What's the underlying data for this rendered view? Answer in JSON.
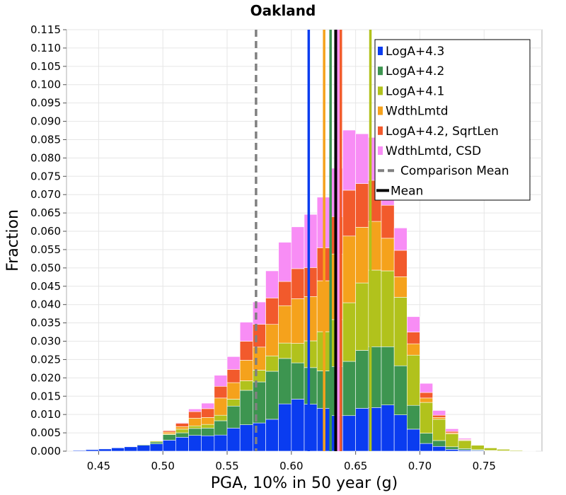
{
  "chart_data": {
    "type": "bar",
    "title": "Oakland",
    "xlabel": "PGA, 10% in 50 year (g)",
    "ylabel": "Fraction",
    "xlim": [
      0.425,
      0.795
    ],
    "ylim": [
      0,
      0.115
    ],
    "x_ticks": [
      0.45,
      0.5,
      0.55,
      0.6,
      0.65,
      0.7,
      0.75
    ],
    "x_tick_labels": [
      "0.45",
      "0.50",
      "0.55",
      "0.60",
      "0.65",
      "0.70",
      "0.75"
    ],
    "y_ticks": [
      0.0,
      0.005,
      0.01,
      0.015,
      0.02,
      0.025,
      0.03,
      0.035,
      0.04,
      0.045,
      0.05,
      0.055,
      0.06,
      0.065,
      0.07,
      0.075,
      0.08,
      0.085,
      0.09,
      0.095,
      0.1,
      0.105,
      0.11,
      0.115
    ],
    "y_tick_labels": [
      "0.000",
      "0.005",
      "0.010",
      "0.015",
      "0.020",
      "0.025",
      "0.030",
      "0.035",
      "0.040",
      "0.045",
      "0.050",
      "0.055",
      "0.060",
      "0.065",
      "0.070",
      "0.075",
      "0.080",
      "0.085",
      "0.090",
      "0.095",
      "0.100",
      "0.105",
      "0.110",
      "0.115"
    ],
    "grid": true,
    "stacked": true,
    "bin_width": 0.01,
    "bin_centers": [
      0.435,
      0.445,
      0.455,
      0.465,
      0.475,
      0.485,
      0.495,
      0.505,
      0.515,
      0.525,
      0.535,
      0.545,
      0.555,
      0.565,
      0.575,
      0.585,
      0.595,
      0.605,
      0.615,
      0.625,
      0.635,
      0.645,
      0.655,
      0.665,
      0.675,
      0.685,
      0.695,
      0.705,
      0.715,
      0.725,
      0.735,
      0.745,
      0.755,
      0.765,
      0.775,
      0.785
    ],
    "series": [
      {
        "name": "LogA+4.3",
        "color": "#0a3cf0",
        "values": [
          0.0002,
          0.0004,
          0.0006,
          0.0009,
          0.0012,
          0.0016,
          0.002,
          0.003,
          0.0038,
          0.0043,
          0.0042,
          0.0044,
          0.0063,
          0.0072,
          0.0077,
          0.0087,
          0.0129,
          0.0142,
          0.0128,
          0.0117,
          0.0097,
          0.0097,
          0.0117,
          0.0119,
          0.0126,
          0.0099,
          0.006,
          0.0021,
          0.0013,
          0.0005,
          0.0003,
          0.0002,
          0.0001,
          0,
          0,
          0
        ]
      },
      {
        "name": "LogA+4.2",
        "color": "#3d9550",
        "values": [
          0,
          0,
          0,
          0,
          0.0001,
          0.0002,
          0.0005,
          0.0015,
          0.0012,
          0.0019,
          0.0021,
          0.0039,
          0.006,
          0.0094,
          0.0112,
          0.0131,
          0.0124,
          0.0099,
          0.01,
          0.0102,
          0.0134,
          0.0148,
          0.0158,
          0.0166,
          0.0159,
          0.0134,
          0.0065,
          0.0028,
          0.0016,
          0.0007,
          0.0004,
          0.0002,
          0.0001,
          0.0001,
          0,
          0
        ]
      },
      {
        "name": "LogA+4.1",
        "color": "#b1c21c",
        "values": [
          0,
          0,
          0,
          0,
          0,
          0.0001,
          0.0003,
          0.0002,
          0.001,
          0.0007,
          0.001,
          0.0015,
          0.0019,
          0.0026,
          0.0032,
          0.0042,
          0.0042,
          0.0053,
          0.0073,
          0.0107,
          0.0128,
          0.016,
          0.0184,
          0.0209,
          0.0207,
          0.0187,
          0.0137,
          0.0084,
          0.0058,
          0.0035,
          0.0022,
          0.0012,
          0.0007,
          0.0004,
          0.0002,
          0.0001
        ]
      },
      {
        "name": "WdthLmtd",
        "color": "#f5a21c",
        "values": [
          0,
          0,
          0,
          0,
          0,
          0,
          0.0001,
          0.0005,
          0.0007,
          0.0021,
          0.0019,
          0.0047,
          0.0045,
          0.0056,
          0.0063,
          0.0086,
          0.0102,
          0.0122,
          0.0121,
          0.0139,
          0.0179,
          0.0182,
          0.0152,
          0.0133,
          0.0089,
          0.0056,
          0.0031,
          0.0012,
          0.0005,
          0.0003,
          0.0001,
          0,
          0,
          0,
          0,
          0
        ]
      },
      {
        "name": "LogA+4.2, SqrtLen",
        "color": "#f25a2c",
        "values": [
          0,
          0,
          0,
          0,
          0,
          0,
          0.0001,
          0.0004,
          0.0009,
          0.0018,
          0.0024,
          0.0032,
          0.0036,
          0.0052,
          0.0062,
          0.0072,
          0.0066,
          0.0082,
          0.0079,
          0.009,
          0.0102,
          0.0125,
          0.0119,
          0.0112,
          0.009,
          0.0072,
          0.0032,
          0.0015,
          0.0006,
          0.0004,
          0.0002,
          0.0001,
          0,
          0,
          0,
          0
        ]
      },
      {
        "name": "WdthLmtd, CSD",
        "color": "#f88df5",
        "values": [
          0,
          0,
          0,
          0,
          0,
          0,
          0.0001,
          0.0001,
          0.0002,
          0.0007,
          0.0015,
          0.003,
          0.0035,
          0.0052,
          0.0061,
          0.0074,
          0.0107,
          0.0114,
          0.0145,
          0.0138,
          0.0132,
          0.0164,
          0.0136,
          0.0117,
          0.0059,
          0.0061,
          0.0042,
          0.0025,
          0.0013,
          0.0007,
          0.0003,
          0.0001,
          0.0001,
          0,
          0,
          0
        ]
      }
    ],
    "vertical_lines": [
      {
        "name": "LogA+4.3 mean",
        "x": 0.6135,
        "color": "#0a3cf0"
      },
      {
        "name": "WdthLmtd mean",
        "x": 0.6255,
        "color": "#f5a21c"
      },
      {
        "name": "LogA+4.2 mean",
        "x": 0.6305,
        "color": "#3d9550"
      },
      {
        "name": "LogA+4.2, SqrtLen mean",
        "x": 0.6385,
        "color": "#f25a2c"
      },
      {
        "name": "WdthLmtd, CSD mean",
        "x": 0.6365,
        "color": "#f88df5"
      },
      {
        "name": "LogA+4.1 mean",
        "x": 0.6615,
        "color": "#b1c21c"
      },
      {
        "name": "Comparison Mean",
        "x": 0.5725,
        "color": "#808080",
        "dashed": true
      },
      {
        "name": "Mean",
        "x": 0.6345,
        "color": "#000000",
        "thick": true
      }
    ],
    "legend": {
      "position": "top-right",
      "entries": [
        {
          "label": "LogA+4.3",
          "color": "#0a3cf0",
          "kind": "box"
        },
        {
          "label": "LogA+4.2",
          "color": "#3d9550",
          "kind": "box"
        },
        {
          "label": "LogA+4.1",
          "color": "#b1c21c",
          "kind": "box"
        },
        {
          "label": "WdthLmtd",
          "color": "#f5a21c",
          "kind": "box"
        },
        {
          "label": "LogA+4.2, SqrtLen",
          "color": "#f25a2c",
          "kind": "box"
        },
        {
          "label": "WdthLmtd, CSD",
          "color": "#f88df5",
          "kind": "box"
        },
        {
          "label": "Comparison Mean",
          "color": "#808080",
          "kind": "dash"
        },
        {
          "label": "Mean",
          "color": "#000000",
          "kind": "line"
        }
      ]
    }
  }
}
